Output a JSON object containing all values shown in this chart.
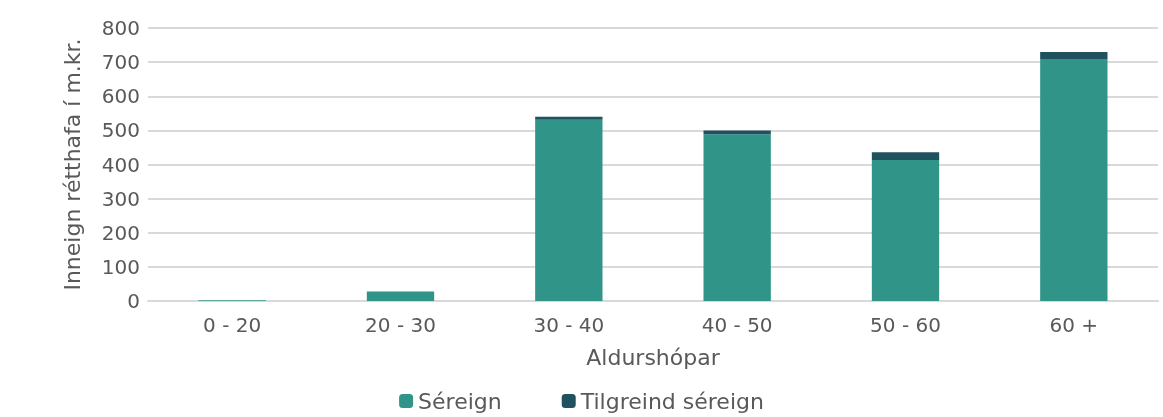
{
  "chart_data": {
    "type": "bar",
    "stacked": true,
    "xlabel": "Aldurshópar",
    "ylabel": "Inneign rétthafa í m.kr.",
    "categories": [
      "0 - 20",
      "20 - 30",
      "30 - 40",
      "40 - 50",
      "50 - 60",
      "60 +"
    ],
    "series": [
      {
        "name": "Séreign",
        "color": "#309488",
        "values": [
          2,
          28,
          531,
          489,
          413,
          709
        ]
      },
      {
        "name": "Tilgreind séreign",
        "color": "#1f525e",
        "values": [
          0,
          0,
          9,
          11,
          23,
          21
        ]
      }
    ],
    "ylim": [
      0,
      800
    ],
    "yticks": [
      0,
      100,
      200,
      300,
      400,
      500,
      600,
      700,
      800
    ],
    "grid": "y",
    "legend": "bottom"
  }
}
